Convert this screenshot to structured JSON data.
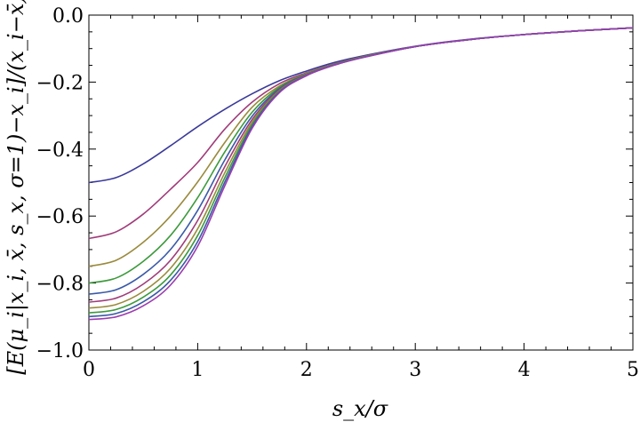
{
  "chart_data": {
    "type": "line",
    "title": "",
    "xlabel": "s_x/σ",
    "ylabel": "[E(μ_i|x_i, x̄, s_x, σ=1)−x_i]/(x_i−x̄)",
    "xlim": [
      0,
      5
    ],
    "ylim": [
      -1.0,
      0.0
    ],
    "x_ticks": [
      "0",
      "1",
      "2",
      "3",
      "4",
      "5"
    ],
    "y_ticks": [
      "0.0",
      "−0.2",
      "−0.4",
      "−0.6",
      "−0.8",
      "−1.0"
    ],
    "x": [
      0,
      0.25,
      0.5,
      0.75,
      1.0,
      1.25,
      1.5,
      1.75,
      2.0,
      2.25,
      2.5,
      3.0,
      3.5,
      4.0,
      4.5,
      5.0
    ],
    "series": [
      {
        "color": "#3a3a9a",
        "values": [
          -0.5,
          -0.485,
          -0.444,
          -0.39,
          -0.333,
          -0.281,
          -0.235,
          -0.196,
          -0.167,
          -0.142,
          -0.123,
          -0.093,
          -0.072,
          -0.058,
          -0.047,
          -0.038
        ]
      },
      {
        "color": "#a03c7a",
        "values": [
          -0.667,
          -0.647,
          -0.594,
          -0.52,
          -0.44,
          -0.34,
          -0.26,
          -0.205,
          -0.172,
          -0.146,
          -0.125,
          -0.094,
          -0.073,
          -0.058,
          -0.047,
          -0.038
        ]
      },
      {
        "color": "#9a8a3c",
        "values": [
          -0.75,
          -0.732,
          -0.678,
          -0.6,
          -0.498,
          -0.38,
          -0.275,
          -0.212,
          -0.174,
          -0.147,
          -0.126,
          -0.094,
          -0.073,
          -0.058,
          -0.047,
          -0.038
        ]
      },
      {
        "color": "#3c9a3c",
        "values": [
          -0.8,
          -0.785,
          -0.735,
          -0.658,
          -0.545,
          -0.408,
          -0.29,
          -0.216,
          -0.176,
          -0.148,
          -0.126,
          -0.094,
          -0.073,
          -0.058,
          -0.047,
          -0.038
        ]
      },
      {
        "color": "#3a5aa8",
        "values": [
          -0.833,
          -0.82,
          -0.774,
          -0.7,
          -0.583,
          -0.432,
          -0.302,
          -0.22,
          -0.177,
          -0.148,
          -0.127,
          -0.094,
          -0.073,
          -0.058,
          -0.047,
          -0.038
        ]
      },
      {
        "color": "#a03c7a",
        "values": [
          -0.857,
          -0.845,
          -0.803,
          -0.732,
          -0.613,
          -0.452,
          -0.312,
          -0.223,
          -0.178,
          -0.149,
          -0.127,
          -0.094,
          -0.073,
          -0.058,
          -0.047,
          -0.038
        ]
      },
      {
        "color": "#9a8a3c",
        "values": [
          -0.875,
          -0.864,
          -0.825,
          -0.756,
          -0.638,
          -0.47,
          -0.32,
          -0.226,
          -0.179,
          -0.149,
          -0.127,
          -0.094,
          -0.073,
          -0.058,
          -0.047,
          -0.038
        ]
      },
      {
        "color": "#3c9a3c",
        "values": [
          -0.889,
          -0.879,
          -0.842,
          -0.776,
          -0.658,
          -0.485,
          -0.327,
          -0.228,
          -0.18,
          -0.149,
          -0.127,
          -0.094,
          -0.073,
          -0.058,
          -0.047,
          -0.038
        ]
      },
      {
        "color": "#3a5aa8",
        "values": [
          -0.9,
          -0.891,
          -0.856,
          -0.792,
          -0.676,
          -0.498,
          -0.333,
          -0.23,
          -0.18,
          -0.15,
          -0.128,
          -0.094,
          -0.073,
          -0.058,
          -0.047,
          -0.038
        ]
      },
      {
        "color": "#9a3cb0",
        "values": [
          -0.909,
          -0.901,
          -0.868,
          -0.806,
          -0.69,
          -0.509,
          -0.338,
          -0.232,
          -0.181,
          -0.15,
          -0.128,
          -0.094,
          -0.073,
          -0.058,
          -0.047,
          -0.038
        ]
      }
    ]
  }
}
